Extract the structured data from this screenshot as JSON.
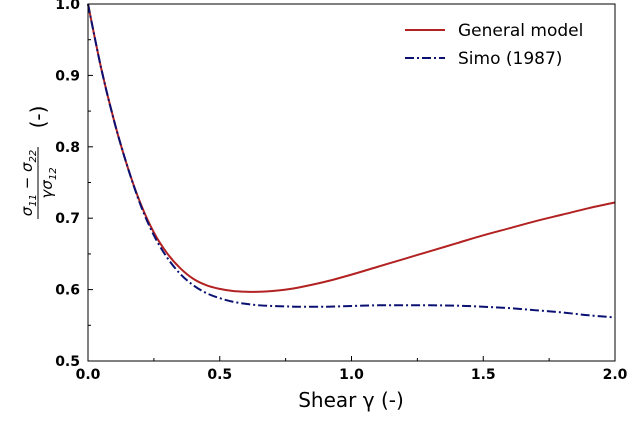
{
  "chart_data": {
    "type": "line",
    "xlabel": "Shear γ (-)",
    "ylabel": {
      "numerator": {
        "a": "σ",
        "a_sub": "11",
        "op": " − ",
        "b": "σ",
        "b_sub": "22"
      },
      "denominator": {
        "g": "γ",
        "s": "σ",
        "s_sub": "12"
      },
      "suffix": "(-)"
    },
    "xlim": [
      0.0,
      2.0
    ],
    "ylim": [
      0.5,
      1.0
    ],
    "x_ticks": [
      0.0,
      0.5,
      1.0,
      1.5,
      2.0
    ],
    "x_tick_labels": [
      "0.0",
      "0.5",
      "1.0",
      "1.5",
      "2.0"
    ],
    "y_ticks": [
      0.5,
      0.6,
      0.7,
      0.8,
      0.9,
      1.0
    ],
    "y_tick_labels": [
      "0.5",
      "0.6",
      "0.7",
      "0.8",
      "0.9",
      "1.0"
    ],
    "grid": false,
    "legend_position": "top-right",
    "series": [
      {
        "name": "General model",
        "color": "#b22222",
        "style": "solid",
        "x": [
          0.0,
          0.05,
          0.1,
          0.15,
          0.2,
          0.25,
          0.3,
          0.35,
          0.4,
          0.45,
          0.5,
          0.55,
          0.6,
          0.65,
          0.7,
          0.75,
          0.8,
          0.9,
          1.0,
          1.1,
          1.2,
          1.3,
          1.4,
          1.5,
          1.6,
          1.7,
          1.8,
          1.9,
          2.0
        ],
        "y": [
          1.0,
          0.91,
          0.835,
          0.772,
          0.72,
          0.68,
          0.651,
          0.63,
          0.615,
          0.606,
          0.601,
          0.598,
          0.597,
          0.597,
          0.598,
          0.6,
          0.603,
          0.611,
          0.621,
          0.632,
          0.643,
          0.654,
          0.665,
          0.676,
          0.686,
          0.696,
          0.705,
          0.714,
          0.722
        ]
      },
      {
        "name": "Simo (1987)",
        "color": "#0a1172",
        "style": "dashdot",
        "x": [
          0.0,
          0.05,
          0.1,
          0.15,
          0.2,
          0.25,
          0.3,
          0.35,
          0.4,
          0.45,
          0.5,
          0.55,
          0.6,
          0.65,
          0.7,
          0.75,
          0.8,
          0.9,
          1.0,
          1.1,
          1.2,
          1.3,
          1.4,
          1.5,
          1.6,
          1.7,
          1.8,
          1.9,
          2.0
        ],
        "y": [
          1.0,
          0.91,
          0.835,
          0.772,
          0.718,
          0.676,
          0.645,
          0.622,
          0.606,
          0.595,
          0.588,
          0.583,
          0.58,
          0.578,
          0.577,
          0.5765,
          0.576,
          0.576,
          0.577,
          0.578,
          0.578,
          0.578,
          0.5775,
          0.576,
          0.574,
          0.571,
          0.568,
          0.564,
          0.561
        ]
      }
    ]
  }
}
